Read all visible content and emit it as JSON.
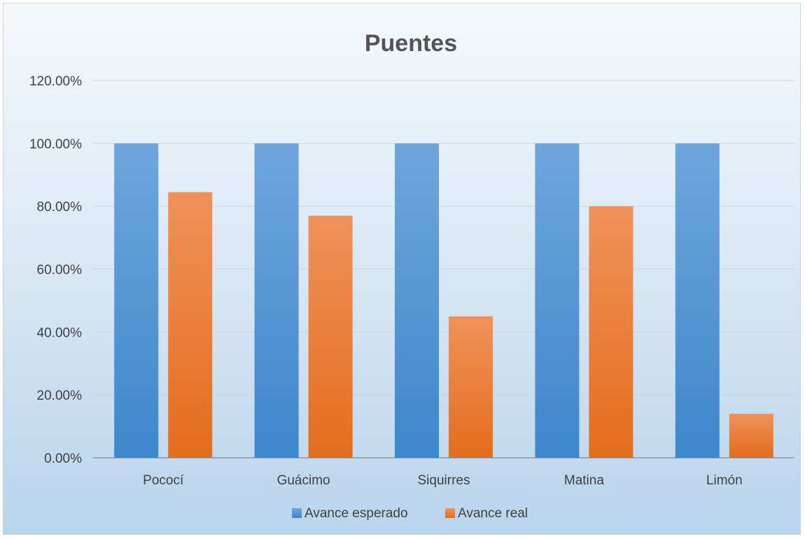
{
  "chart_data": {
    "type": "bar",
    "title": "Puentes",
    "xlabel": "",
    "ylabel": "",
    "categories": [
      "Pococí",
      "Guácimo",
      "Siquirres",
      "Matina",
      "Limón"
    ],
    "series": [
      {
        "name": "Avance esperado",
        "values": [
          100.0,
          100.0,
          100.0,
          100.0,
          100.0
        ],
        "color": "#5b9bd5"
      },
      {
        "name": "Avance real",
        "values": [
          84.5,
          77.0,
          45.0,
          80.0,
          14.0
        ],
        "color": "#ed7d31"
      }
    ],
    "ylim": [
      0,
      120
    ],
    "yticks": [
      "0.00%",
      "20.00%",
      "40.00%",
      "60.00%",
      "80.00%",
      "100.00%",
      "120.00%"
    ],
    "grid": true,
    "legend_position": "bottom"
  }
}
